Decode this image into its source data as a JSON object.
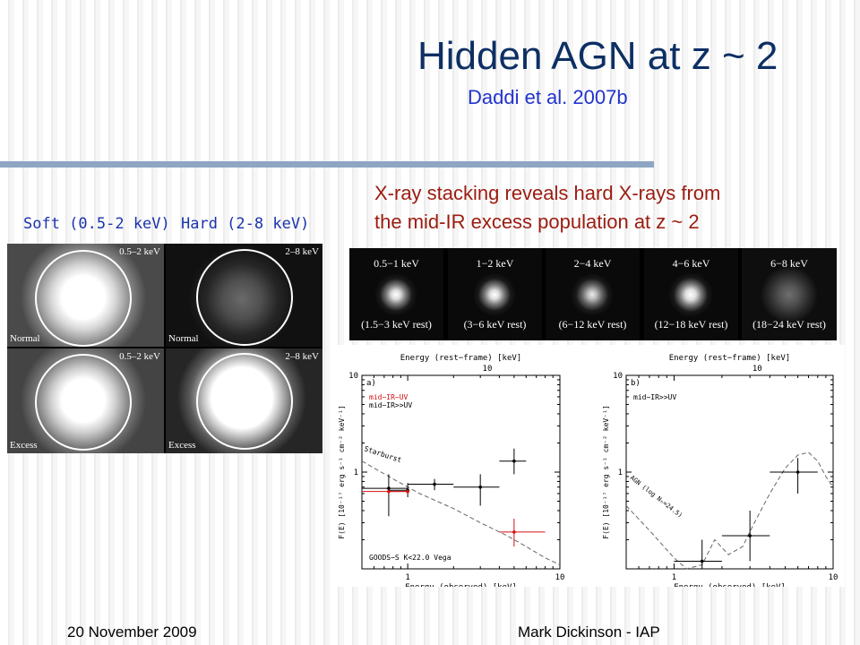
{
  "slide": {
    "title": "Hidden AGN at z ~ 2",
    "subtitle": "Daddi et al. 2007b",
    "caption_line1": "X-ray stacking reveals hard X-rays from",
    "caption_line2": "the mid-IR excess population at z ~ 2",
    "label_soft": "Soft (0.5-2 keV)",
    "label_hard": "Hard (2-8 keV)",
    "footer_left": "20 November 2009",
    "footer_right": "Mark Dickinson - IAP",
    "colors": {
      "title": "#0d2f63",
      "subtitle": "#2233cc",
      "caption": "#9b1c10",
      "rule": "#8ea6c4"
    }
  },
  "stack_grid": {
    "panels": [
      {
        "band": "0.5–2 keV",
        "row": "Normal",
        "brightness": "high"
      },
      {
        "band": "2–8 keV",
        "row": "Normal",
        "brightness": "low"
      },
      {
        "band": "0.5–2 keV",
        "row": "Excess",
        "brightness": "high"
      },
      {
        "band": "2–8 keV",
        "row": "Excess",
        "brightness": "high"
      }
    ]
  },
  "band_strip": [
    {
      "band": "0.5−1 keV",
      "rest": "(1.5−3 keV rest)"
    },
    {
      "band": "1−2 keV",
      "rest": "(3−6 keV rest)"
    },
    {
      "band": "2−4 keV",
      "rest": "(6−12 keV rest)"
    },
    {
      "band": "4−6 keV",
      "rest": "(12−18 keV rest)"
    },
    {
      "band": "6−8 keV",
      "rest": "(18−24 keV rest)"
    }
  ],
  "chart_data": [
    {
      "type": "scatter",
      "panel_label": "a)",
      "xlabel": "Energy (observed) [keV]",
      "top_xlabel": "Energy (rest−frame) [keV]",
      "ylabel": "F(E) [10⁻¹⁷ erg s⁻¹ cm⁻² keV⁻¹]",
      "xscale": "log",
      "yscale": "log",
      "xlim": [
        0.5,
        10
      ],
      "ylim": [
        0.1,
        10
      ],
      "x_ticks": [
        "1",
        "10"
      ],
      "y_ticks": [
        "1",
        "10"
      ],
      "top_ticks": [
        "10"
      ],
      "legend": [
        {
          "text": "mid−IR~UV",
          "color": "#d01010"
        },
        {
          "text": "mid−IR>>UV",
          "color": "#000000"
        }
      ],
      "annotations": [
        "Starburst",
        "GOODS−S K<22.0 Vega"
      ],
      "series": [
        {
          "name": "mid−IR>>UV",
          "color": "#000000",
          "x": [
            0.75,
            1.0,
            1.5,
            3.0,
            5.0
          ],
          "y": [
            0.68,
            0.65,
            0.75,
            0.7,
            1.3
          ],
          "xerr": [
            [
              0.5,
              1.0
            ],
            [
              0.75,
              1.0
            ],
            [
              1.0,
              2.0
            ],
            [
              2.0,
              4.0
            ],
            [
              4.0,
              6.0
            ]
          ],
          "yerr": [
            [
              0.35,
              0.95
            ],
            [
              0.55,
              0.77
            ],
            [
              0.65,
              0.85
            ],
            [
              0.45,
              0.95
            ],
            [
              0.95,
              1.75
            ]
          ]
        },
        {
          "name": "mid−IR~UV",
          "color": "#d01010",
          "x": [
            0.75,
            1.0,
            5.0
          ],
          "y": [
            0.63,
            0.63,
            0.24
          ],
          "xerr": [
            [
              0.5,
              1.0
            ],
            [
              0.75,
              1.0
            ],
            [
              4.0,
              8.0
            ]
          ],
          "yerr": [
            [
              0.6,
              0.66
            ],
            [
              0.6,
              0.66
            ],
            [
              0.17,
              0.33
            ]
          ]
        }
      ],
      "model_curve": {
        "name": "Starburst",
        "x": [
          0.5,
          0.8,
          1.2,
          2.0,
          3.0,
          4.5,
          6.0,
          8.0,
          10.0
        ],
        "y": [
          1.3,
          0.85,
          0.6,
          0.42,
          0.3,
          0.22,
          0.17,
          0.13,
          0.11
        ]
      }
    },
    {
      "type": "scatter",
      "panel_label": "b)",
      "xlabel": "Energy (observed) [keV]",
      "top_xlabel": "Energy (rest−frame) [keV]",
      "ylabel": "F(E) [10⁻¹⁷ erg s⁻¹ cm⁻² keV⁻¹]",
      "xscale": "log",
      "yscale": "log",
      "xlim": [
        0.5,
        10
      ],
      "ylim": [
        0.1,
        10
      ],
      "x_ticks": [
        "1",
        "10"
      ],
      "y_ticks": [
        "1",
        "10"
      ],
      "top_ticks": [
        "10"
      ],
      "legend": [
        {
          "text": "mid−IR>>UV",
          "color": "#000000"
        }
      ],
      "annotations": [
        "AGN (log Nₕ=24.5)"
      ],
      "series": [
        {
          "name": "mid−IR>>UV",
          "color": "#000000",
          "x": [
            1.5,
            3.0,
            6.0
          ],
          "y": [
            0.12,
            0.22,
            1.0
          ],
          "xerr": [
            [
              1.0,
              2.0
            ],
            [
              2.0,
              4.0
            ],
            [
              4.0,
              8.0
            ]
          ],
          "yerr": [
            [
              0.1,
              0.2
            ],
            [
              0.12,
              0.4
            ],
            [
              0.6,
              1.4
            ]
          ]
        }
      ],
      "model_curve": {
        "name": "AGN",
        "x": [
          0.5,
          0.7,
          1.0,
          1.2,
          1.5,
          1.8,
          2.2,
          2.7,
          3.2,
          4.0,
          5.0,
          6.0,
          7.0,
          8.0,
          9.0,
          10.0
        ],
        "y": [
          0.45,
          0.25,
          0.13,
          0.1,
          0.11,
          0.2,
          0.14,
          0.17,
          0.3,
          0.6,
          1.1,
          1.5,
          1.6,
          1.3,
          0.9,
          0.7
        ]
      }
    }
  ]
}
